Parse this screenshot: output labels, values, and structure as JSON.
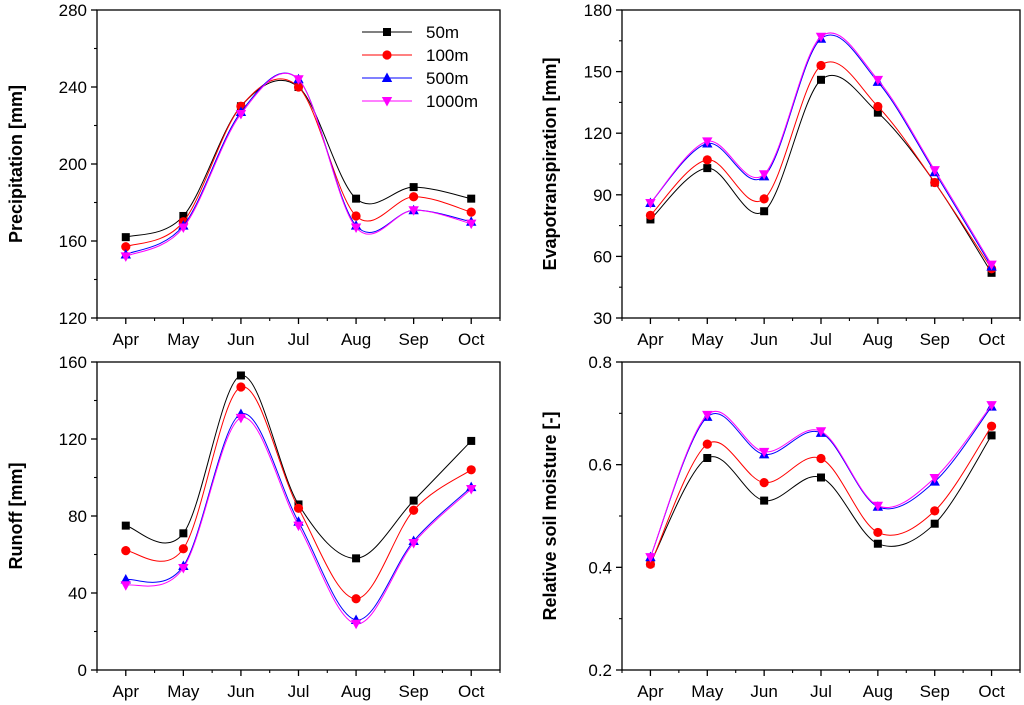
{
  "chart_data": [
    {
      "type": "line",
      "id": "precip",
      "ylabel": "Precipitation [mm]",
      "xlabel": "",
      "categories": [
        "Apr",
        "May",
        "Jun",
        "Jul",
        "Aug",
        "Sep",
        "Oct"
      ],
      "ylim": [
        120,
        280
      ],
      "yticks": [
        "120",
        "160",
        "200",
        "240",
        "280"
      ],
      "legend": "top-right",
      "series": [
        {
          "name": "50m",
          "color": "#000000",
          "marker": "square",
          "values": [
            162,
            173,
            230,
            240,
            182,
            188,
            182
          ]
        },
        {
          "name": "100m",
          "color": "#ff0000",
          "marker": "circle",
          "values": [
            157,
            170,
            230,
            240,
            173,
            183,
            175
          ]
        },
        {
          "name": "500m",
          "color": "#0000ff",
          "marker": "triangle-up",
          "values": [
            153,
            168,
            227,
            244,
            168,
            176,
            170
          ]
        },
        {
          "name": "1000m",
          "color": "#ff00ff",
          "marker": "triangle-down",
          "values": [
            152,
            167,
            226,
            244,
            167,
            176,
            169
          ]
        }
      ]
    },
    {
      "type": "line",
      "id": "et",
      "ylabel": "Evapotranspiration [mm]",
      "xlabel": "",
      "categories": [
        "Apr",
        "May",
        "Jun",
        "Jul",
        "Aug",
        "Sep",
        "Oct"
      ],
      "ylim": [
        30,
        180
      ],
      "yticks": [
        "30",
        "60",
        "90",
        "120",
        "150",
        "180"
      ],
      "series": [
        {
          "name": "50m",
          "color": "#000000",
          "marker": "square",
          "values": [
            78,
            103,
            82,
            146,
            130,
            96,
            52
          ]
        },
        {
          "name": "100m",
          "color": "#ff0000",
          "marker": "circle",
          "values": [
            80,
            107,
            88,
            153,
            133,
            96,
            54
          ]
        },
        {
          "name": "500m",
          "color": "#0000ff",
          "marker": "triangle-up",
          "values": [
            86,
            115,
            99,
            166,
            145,
            101,
            55
          ]
        },
        {
          "name": "1000m",
          "color": "#ff00ff",
          "marker": "triangle-down",
          "values": [
            86,
            116,
            100,
            167,
            146,
            102,
            56
          ]
        }
      ]
    },
    {
      "type": "line",
      "id": "runoff",
      "ylabel": "Runoff [mm]",
      "xlabel": "",
      "categories": [
        "Apr",
        "May",
        "Jun",
        "Jul",
        "Aug",
        "Sep",
        "Oct"
      ],
      "ylim": [
        0,
        160
      ],
      "yticks": [
        "0",
        "40",
        "80",
        "120",
        "160"
      ],
      "series": [
        {
          "name": "50m",
          "color": "#000000",
          "marker": "square",
          "values": [
            75,
            71,
            153,
            86,
            58,
            88,
            119
          ]
        },
        {
          "name": "100m",
          "color": "#ff0000",
          "marker": "circle",
          "values": [
            62,
            63,
            147,
            84,
            37,
            83,
            104
          ]
        },
        {
          "name": "500m",
          "color": "#0000ff",
          "marker": "triangle-up",
          "values": [
            47,
            54,
            133,
            77,
            26,
            67,
            95
          ]
        },
        {
          "name": "1000m",
          "color": "#ff00ff",
          "marker": "triangle-down",
          "values": [
            44,
            53,
            131,
            75,
            24,
            66,
            94
          ]
        }
      ]
    },
    {
      "type": "line",
      "id": "soil",
      "ylabel": "Relative soil moisture [-]",
      "xlabel": "",
      "categories": [
        "Apr",
        "May",
        "Jun",
        "Jul",
        "Aug",
        "Sep",
        "Oct"
      ],
      "ylim": [
        0.2,
        0.8
      ],
      "yticks": [
        "0.2",
        "0.4",
        "0.6",
        "0.8"
      ],
      "series": [
        {
          "name": "50m",
          "color": "#000000",
          "marker": "square",
          "values": [
            0.408,
            0.613,
            0.53,
            0.575,
            0.446,
            0.485,
            0.657
          ]
        },
        {
          "name": "100m",
          "color": "#ff0000",
          "marker": "circle",
          "values": [
            0.406,
            0.64,
            0.565,
            0.612,
            0.468,
            0.51,
            0.675
          ]
        },
        {
          "name": "500m",
          "color": "#0000ff",
          "marker": "triangle-up",
          "values": [
            0.42,
            0.693,
            0.62,
            0.662,
            0.518,
            0.567,
            0.713
          ]
        },
        {
          "name": "1000m",
          "color": "#ff00ff",
          "marker": "triangle-down",
          "values": [
            0.42,
            0.697,
            0.625,
            0.665,
            0.52,
            0.574,
            0.716
          ]
        }
      ]
    }
  ]
}
